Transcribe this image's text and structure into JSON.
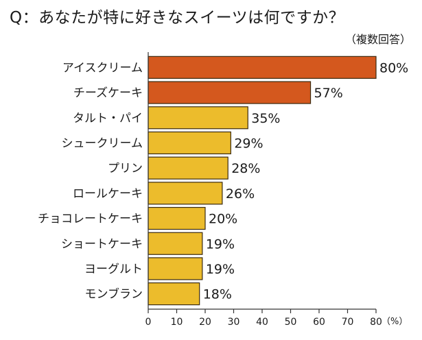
{
  "chart_data": {
    "type": "bar",
    "orientation": "horizontal",
    "title": "Q：あなたが特に好きなスイーツは何ですか？",
    "note": "（複数回答）",
    "categories": [
      "アイスクリーム",
      "チーズケーキ",
      "タルト・パイ",
      "シュークリーム",
      "プリン",
      "ロールケーキ",
      "チョコレートケーキ",
      "ショートケーキ",
      "ヨーグルト",
      "モンブラン"
    ],
    "values": [
      80,
      57,
      35,
      29,
      28,
      26,
      20,
      19,
      19,
      18
    ],
    "value_labels": [
      "80%",
      "57%",
      "35%",
      "29%",
      "28%",
      "26%",
      "20%",
      "19%",
      "19%",
      "18%"
    ],
    "xlim": [
      0,
      80
    ],
    "xticks": [
      0,
      10,
      20,
      30,
      40,
      50,
      60,
      70,
      80
    ],
    "xunit": "（%）",
    "grid": false,
    "colors": {
      "highlight": "#d4581e",
      "normal": "#ecbc2c",
      "border": "#3a2a10",
      "axis": "#333333"
    },
    "highlight_count": 2
  }
}
